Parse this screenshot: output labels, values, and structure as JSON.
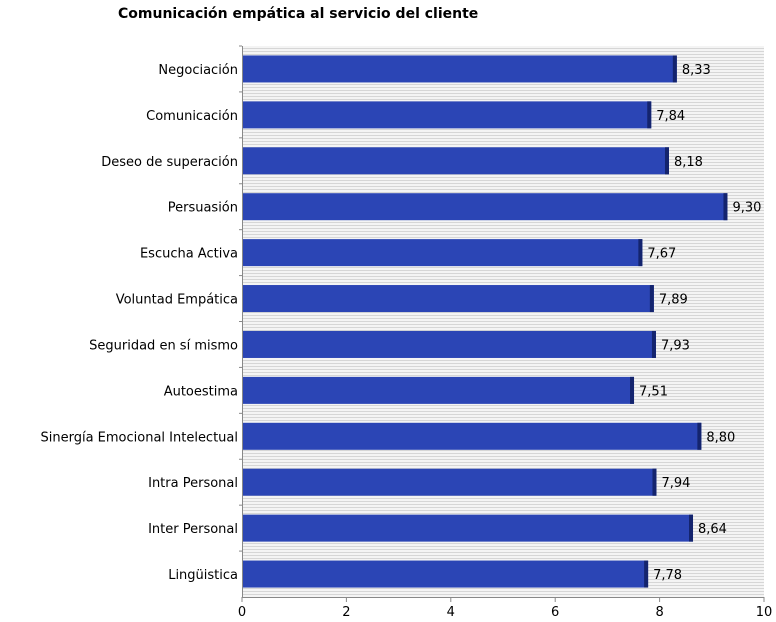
{
  "chart_data": {
    "type": "bar",
    "orientation": "horizontal",
    "title": "Comunicación empática al servicio del cliente",
    "xlabel": "",
    "ylabel": "",
    "xlim": [
      0,
      10
    ],
    "x_ticks": [
      "0",
      "2",
      "4",
      "6",
      "8",
      "10"
    ],
    "grid": "horizontal stripes",
    "categories": [
      "Negociación",
      "Comunicación",
      "Deseo de superación",
      "Persuasión",
      "Escucha Activa",
      "Voluntad Empática",
      "Seguridad en sí mismo",
      "Autoestima",
      "Sinergía Emocional Intelectual",
      "Intra Personal",
      "Inter Personal",
      "Lingüistica"
    ],
    "values": [
      8.33,
      7.84,
      8.18,
      9.3,
      7.67,
      7.89,
      7.93,
      7.51,
      8.8,
      7.94,
      8.64,
      7.78
    ],
    "value_labels": [
      "8,33",
      "7,84",
      "8,18",
      "9,30",
      "7,67",
      "7,89",
      "7,93",
      "7,51",
      "8,80",
      "7,94",
      "8,64",
      "7,78"
    ],
    "bar_color": "#2b45b5",
    "bar_edge_color": "#14246e"
  }
}
